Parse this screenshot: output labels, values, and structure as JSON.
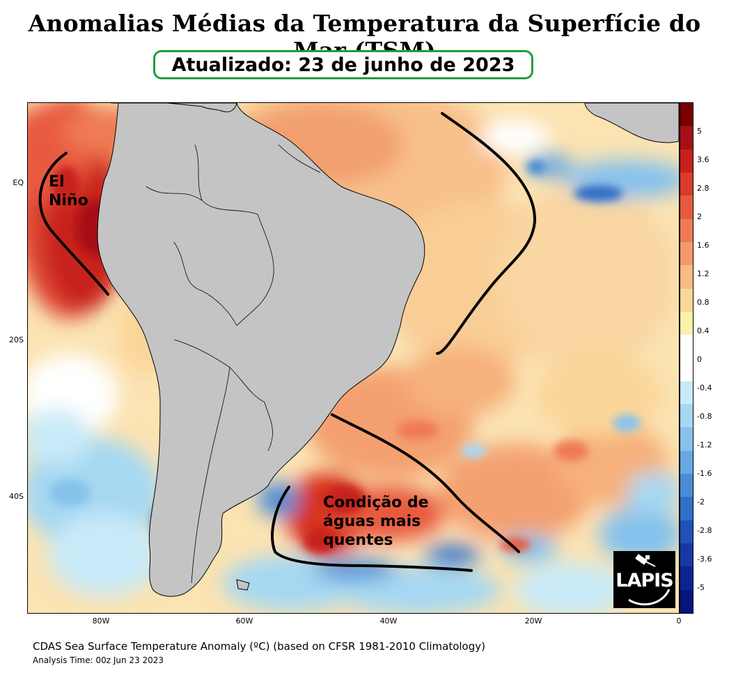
{
  "header": {
    "title": "Anomalias Médias da Temperatura da Superfície do Mar (TSM)",
    "updated": "Atualizado: 23 de junho de 2023"
  },
  "map": {
    "latitude_labels": [
      "EQ",
      "20S",
      "40S"
    ],
    "longitude_labels": [
      "80W",
      "60W",
      "40W",
      "20W",
      "0"
    ],
    "colorbar_labels": [
      "5",
      "3.6",
      "2.8",
      "2",
      "1.6",
      "1.2",
      "0.8",
      "0.4",
      "0",
      "-0.4",
      "-0.8",
      "-1.2",
      "-1.6",
      "-2",
      "-2.8",
      "-3.6",
      "-5"
    ],
    "colorbar_colors": [
      "#7a0000",
      "#a50f15",
      "#c8201e",
      "#dc3a2c",
      "#e85a3f",
      "#ef7a52",
      "#f49a6a",
      "#f8bb82",
      "#fbd699",
      "#fdf0a8",
      "#ffffff",
      "#ffffff",
      "#c9eaf8",
      "#a6d8f2",
      "#86c2ec",
      "#67a8e2",
      "#4a8cd6",
      "#3170c8",
      "#1f52b8",
      "#1638a6",
      "#0c2492",
      "#08137e"
    ],
    "annotations": {
      "el_nino": "El Niño",
      "warm_waters": "Condição de águas mais quentes"
    }
  },
  "logo": {
    "text": "LAPIS"
  },
  "footer": {
    "source": "CDAS Sea Surface Temperature Anomaly (ºC) (based on CFSR 1981-2010 Climatology)",
    "analysis_time": "Analysis Time: 00z Jun 23 2023"
  },
  "colors": {
    "frame_green": "#1f9e3a",
    "land_gray": "#c4c4c4",
    "warm_red": "#dc3a2c",
    "cool_blue": "#4a8cd6"
  }
}
